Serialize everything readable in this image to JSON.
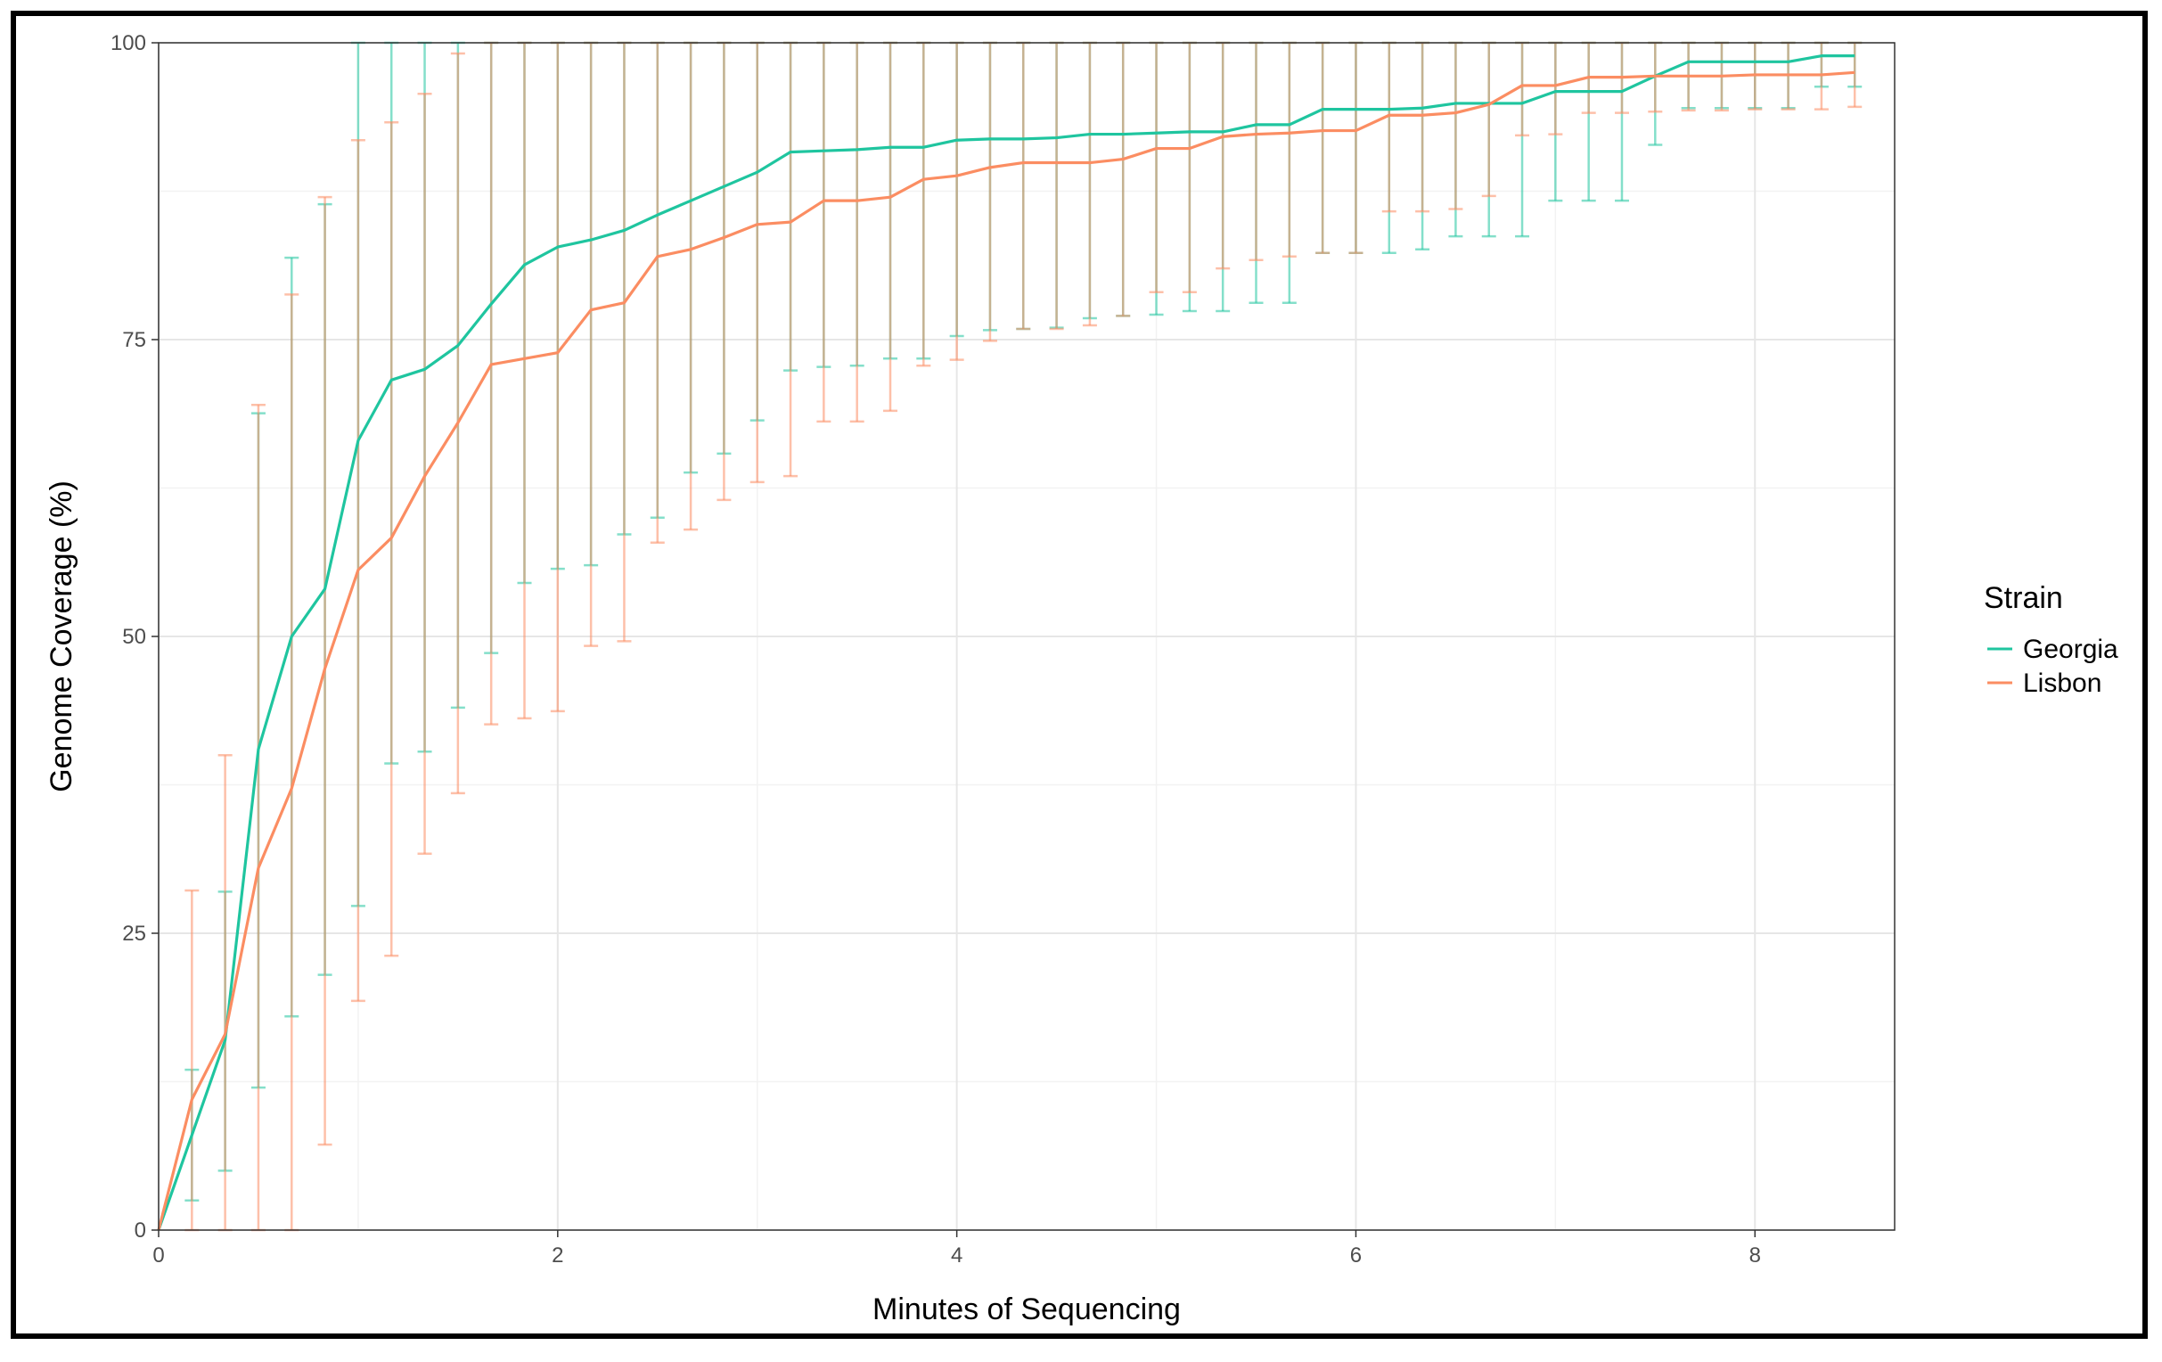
{
  "chart_data": {
    "type": "line",
    "title": "",
    "xlabel": "Minutes of Sequencing",
    "ylabel": "Genome Coverage (%)",
    "xlim": [
      0,
      8.7
    ],
    "ylim": [
      0,
      100
    ],
    "x_ticks": [
      0,
      2,
      4,
      6,
      8
    ],
    "y_ticks": [
      0,
      25,
      50,
      75,
      100
    ],
    "grid": true,
    "legend": {
      "title": "Strain",
      "position": "right"
    },
    "x": [
      0,
      0.1667,
      0.3333,
      0.5,
      0.6667,
      0.8333,
      1.0,
      1.1667,
      1.3333,
      1.5,
      1.6667,
      1.8333,
      2.0,
      2.1667,
      2.3333,
      2.5,
      2.6667,
      2.8333,
      3.0,
      3.1667,
      3.3333,
      3.5,
      3.6667,
      3.8333,
      4.0,
      4.1667,
      4.3333,
      4.5,
      4.6667,
      4.8333,
      5.0,
      5.1667,
      5.3333,
      5.5,
      5.6667,
      5.8333,
      6.0,
      6.1667,
      6.3333,
      6.5,
      6.6667,
      6.8333,
      7.0,
      7.1667,
      7.3333,
      7.5,
      7.6667,
      7.8333,
      8.0,
      8.1667,
      8.3333,
      8.5
    ],
    "series": [
      {
        "name": "Georgia",
        "color": "#1fc59f",
        "values": [
          0,
          8,
          16,
          40.5,
          50,
          54,
          66.5,
          71.6,
          72.5,
          74.5,
          78,
          81.3,
          82.8,
          83.4,
          84.2,
          85.5,
          86.7,
          87.9,
          89.1,
          90.8,
          90.9,
          91,
          91.2,
          91.2,
          91.8,
          91.9,
          91.9,
          92,
          92.3,
          92.3,
          92.4,
          92.5,
          92.5,
          93.1,
          93.1,
          94.4,
          94.4,
          94.4,
          94.5,
          94.9,
          94.9,
          94.9,
          95.9,
          95.9,
          95.9,
          97.2,
          98.4,
          98.4,
          98.4,
          98.4,
          98.9,
          98.9
        ],
        "lower": [
          0,
          2.5,
          5,
          12,
          18,
          21.5,
          27.3,
          39.3,
          40.3,
          44,
          48.6,
          54.5,
          55.7,
          56,
          58.6,
          60,
          63.8,
          65.4,
          68.2,
          72.4,
          72.7,
          72.8,
          73.4,
          73.4,
          75.3,
          75.8,
          75.9,
          76,
          76.8,
          77,
          77.1,
          77.4,
          77.4,
          78.1,
          78.1,
          82.3,
          82.3,
          82.3,
          82.6,
          83.7,
          83.7,
          83.7,
          86.7,
          86.7,
          86.7,
          91.4,
          94.5,
          94.5,
          94.5,
          94.5,
          96.3,
          96.3
        ],
        "upper": [
          0,
          13.5,
          28.5,
          68.8,
          81.9,
          86.4,
          100,
          100,
          100,
          100,
          100,
          100,
          100,
          100,
          100,
          100,
          100,
          100,
          100,
          100,
          100,
          100,
          100,
          100,
          100,
          100,
          100,
          100,
          100,
          100,
          100,
          100,
          100,
          100,
          100,
          100,
          100,
          100,
          100,
          100,
          100,
          100,
          100,
          100,
          100,
          100,
          100,
          100,
          100,
          100,
          100,
          100
        ]
      },
      {
        "name": "Lisbon",
        "color": "#fb8d62",
        "values": [
          0,
          11,
          16.5,
          30.5,
          37.2,
          47.3,
          55.6,
          58.3,
          63.5,
          68,
          72.9,
          73.4,
          73.9,
          77.5,
          78.1,
          82,
          82.6,
          83.6,
          84.7,
          84.9,
          86.7,
          86.7,
          87,
          88.5,
          88.8,
          89.5,
          89.9,
          89.9,
          89.9,
          90.2,
          91.1,
          91.1,
          92.1,
          92.3,
          92.4,
          92.6,
          92.6,
          93.9,
          93.9,
          94.1,
          94.8,
          96.4,
          96.4,
          97.1,
          97.1,
          97.2,
          97.2,
          97.2,
          97.3,
          97.3,
          97.3,
          97.5
        ],
        "lower": [
          0,
          0,
          0,
          0,
          0,
          7.2,
          19.3,
          23.1,
          31.7,
          36.8,
          42.6,
          43.1,
          43.7,
          49.2,
          49.6,
          57.9,
          59,
          61.5,
          63,
          63.5,
          68.1,
          68.1,
          69,
          72.8,
          73.3,
          74.9,
          75.9,
          75.9,
          76.2,
          77,
          79,
          79,
          81,
          81.7,
          82,
          82.3,
          82.3,
          85.8,
          85.8,
          86,
          87.1,
          92.2,
          92.3,
          94.1,
          94.1,
          94.2,
          94.3,
          94.3,
          94.4,
          94.4,
          94.4,
          94.6
        ],
        "upper": [
          0,
          28.6,
          40,
          69.5,
          78.8,
          87,
          91.8,
          93.3,
          95.7,
          99.1,
          100,
          100,
          100,
          100,
          100,
          100,
          100,
          100,
          100,
          100,
          100,
          100,
          100,
          100,
          100,
          100,
          100,
          100,
          100,
          100,
          100,
          100,
          100,
          100,
          100,
          100,
          100,
          100,
          100,
          100,
          100,
          100,
          100,
          100,
          100,
          100,
          100,
          100,
          100,
          100,
          100,
          100
        ]
      }
    ]
  }
}
